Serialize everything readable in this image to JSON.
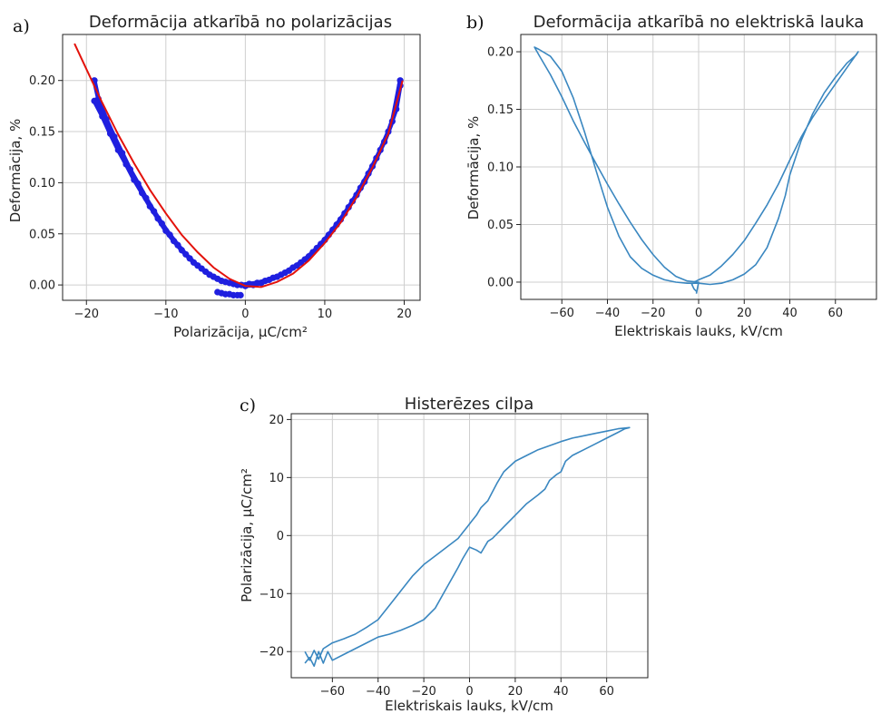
{
  "chart_data": [
    {
      "type": "scatter",
      "panel_label": "a)",
      "title": "Deformācija atkarībā no polarizācijas",
      "xlabel": "Polarizācija, μC/cm²",
      "ylabel": "Deformācija, %",
      "xlim": [
        -23,
        22
      ],
      "ylim": [
        -0.015,
        0.245
      ],
      "xticks": [
        -20,
        -10,
        0,
        10,
        20
      ],
      "yticks": [
        0.0,
        0.05,
        0.1,
        0.15,
        0.2
      ],
      "ytick_labels": [
        "0.00",
        "0.05",
        "0.10",
        "0.15",
        "0.20"
      ],
      "grid": true,
      "colors": {
        "data": "#1f1fdf",
        "fit": "#e3120b"
      },
      "series": [
        {
          "kind": "scatter",
          "x": [
            -19.0,
            -18.5,
            -17.5,
            -16.5,
            -15.5,
            -14.5,
            -13.5,
            -12.5,
            -11.5,
            -10.5,
            -9.5,
            -8.5,
            -7.5,
            -6.5,
            -5.5,
            -4.5,
            -3.5,
            -2.5,
            -1.5,
            -0.5,
            0.5,
            1.5,
            2.5,
            3.5,
            4.5,
            5.5,
            6.5,
            7.5,
            8.5,
            9.5,
            10.5,
            11.5,
            12.5,
            13.5,
            14.5,
            15.5,
            16.5,
            17.5,
            18.5,
            19.5,
            -19.0,
            -18.0,
            -17.0,
            -16.0,
            -15.0,
            -14.0,
            -13.0,
            -12.0,
            -11.0,
            -10.0,
            -9.0,
            -8.0,
            -7.0,
            -6.0,
            -5.0,
            -4.0,
            -3.0,
            -2.0,
            -1.0,
            0.0,
            1.0,
            2.0,
            3.0,
            4.0,
            5.0,
            6.0,
            7.0,
            8.0,
            9.0,
            10.0,
            11.0,
            12.0,
            13.0,
            14.0,
            15.0,
            16.0,
            17.0,
            18.0,
            19.0,
            19.5,
            -3.5,
            -3.0,
            -2.5,
            -2.0,
            -1.5,
            -1.0,
            -0.6
          ],
          "y": [
            0.2,
            0.182,
            0.162,
            0.145,
            0.129,
            0.113,
            0.099,
            0.085,
            0.072,
            0.06,
            0.049,
            0.039,
            0.03,
            0.022,
            0.016,
            0.01,
            0.006,
            0.003,
            0.001,
            0.0,
            0.001,
            0.002,
            0.004,
            0.007,
            0.01,
            0.014,
            0.019,
            0.025,
            0.032,
            0.04,
            0.049,
            0.059,
            0.07,
            0.082,
            0.095,
            0.109,
            0.124,
            0.14,
            0.16,
            0.2,
            0.18,
            0.165,
            0.148,
            0.132,
            0.118,
            0.103,
            0.09,
            0.077,
            0.065,
            0.053,
            0.043,
            0.034,
            0.026,
            0.019,
            0.013,
            0.008,
            0.004,
            0.002,
            0.0,
            -0.001,
            0.0,
            0.002,
            0.005,
            0.008,
            0.012,
            0.017,
            0.022,
            0.028,
            0.036,
            0.044,
            0.054,
            0.064,
            0.076,
            0.088,
            0.101,
            0.116,
            0.132,
            0.15,
            0.172,
            0.195,
            -0.007,
            -0.008,
            -0.009,
            -0.009,
            -0.01,
            -0.01,
            -0.01
          ]
        },
        {
          "kind": "line",
          "x": [
            -21.5,
            -20,
            -18,
            -16,
            -14,
            -12,
            -10,
            -8,
            -6,
            -4,
            -2,
            0,
            2,
            4,
            6,
            8,
            10,
            12,
            14,
            16,
            18,
            19.8
          ],
          "y": [
            0.236,
            0.211,
            0.178,
            0.147,
            0.119,
            0.093,
            0.07,
            0.049,
            0.032,
            0.017,
            0.006,
            -0.001,
            -0.002,
            0.003,
            0.011,
            0.024,
            0.041,
            0.061,
            0.086,
            0.115,
            0.148,
            0.2
          ]
        }
      ]
    },
    {
      "type": "line",
      "panel_label": "b)",
      "title": "Deformācija atkarībā no elektriskā lauka",
      "xlabel": "Elektriskais lauks, kV/cm",
      "ylabel": "Deformācija, %",
      "xlim": [
        -78,
        78
      ],
      "ylim": [
        -0.015,
        0.215
      ],
      "xticks": [
        -60,
        -40,
        -20,
        0,
        20,
        40,
        60
      ],
      "yticks": [
        0.0,
        0.05,
        0.1,
        0.15,
        0.2
      ],
      "ytick_labels": [
        "0.00",
        "0.05",
        "0.10",
        "0.15",
        "0.20"
      ],
      "grid": true,
      "colors": {
        "line": "#3a87c0"
      },
      "series": [
        {
          "x": [
            -1,
            -2,
            -3,
            -2,
            0,
            5,
            10,
            15,
            20,
            25,
            30,
            35,
            40,
            45,
            50,
            55,
            60,
            65,
            70,
            69,
            65,
            60,
            55,
            50,
            45,
            40,
            38,
            35,
            30,
            25,
            20,
            15,
            10,
            5,
            0,
            -5,
            -10,
            -15,
            -20,
            -25,
            -30,
            -35,
            -40,
            -45,
            -50,
            -55,
            -60,
            -65,
            -70,
            -72,
            -70,
            -65,
            -60,
            -55,
            -50,
            -45,
            -40,
            -35,
            -30,
            -25,
            -20,
            -15,
            -10,
            -5,
            0,
            -1
          ],
          "y": [
            -0.008,
            -0.006,
            -0.002,
            0.0,
            0.002,
            0.006,
            0.014,
            0.024,
            0.036,
            0.051,
            0.067,
            0.085,
            0.106,
            0.126,
            0.143,
            0.158,
            0.172,
            0.186,
            0.2,
            0.197,
            0.19,
            0.178,
            0.164,
            0.146,
            0.123,
            0.093,
            0.075,
            0.055,
            0.03,
            0.015,
            0.007,
            0.002,
            -0.001,
            -0.002,
            -0.001,
            -0.001,
            0.0,
            0.002,
            0.006,
            0.012,
            0.022,
            0.04,
            0.065,
            0.097,
            0.13,
            0.16,
            0.183,
            0.196,
            0.202,
            0.204,
            0.197,
            0.18,
            0.161,
            0.14,
            0.121,
            0.103,
            0.085,
            0.068,
            0.052,
            0.037,
            0.024,
            0.013,
            0.005,
            0.001,
            0.0,
            -0.01
          ]
        }
      ]
    },
    {
      "type": "line",
      "panel_label": "c)",
      "title": "Histerēzes cilpa",
      "xlabel": "Elektriskais lauks, kV/cm",
      "ylabel": "Polarizācija, μC/cm²",
      "xlim": [
        -78,
        78
      ],
      "ylim": [
        -24.5,
        21
      ],
      "xticks": [
        -60,
        -40,
        -20,
        0,
        20,
        40,
        60
      ],
      "yticks": [
        -20,
        -10,
        0,
        10,
        20
      ],
      "ytick_labels": [
        "−20",
        "−10",
        "0",
        "10",
        "20"
      ],
      "grid": true,
      "colors": {
        "line": "#3a87c0"
      },
      "series": [
        {
          "x": [
            -72,
            -70,
            -68,
            -66,
            -64,
            -62,
            -60,
            -55,
            -50,
            -45,
            -40,
            -35,
            -30,
            -25,
            -20,
            -15,
            -10,
            -5,
            -3,
            -1,
            0,
            1,
            3,
            5,
            8,
            10,
            12,
            15,
            20,
            25,
            30,
            35,
            40,
            45,
            50,
            55,
            60,
            65,
            70,
            68,
            65,
            60,
            55,
            50,
            45,
            42,
            40,
            38,
            35,
            33,
            30,
            25,
            20,
            15,
            10,
            8,
            5,
            3,
            0,
            -3,
            -5,
            -10,
            -15,
            -20,
            -25,
            -30,
            -35,
            -40,
            -45,
            -50,
            -55,
            -60,
            -62,
            -64,
            -66,
            -68,
            -70,
            -72
          ],
          "y": [
            -20.0,
            -21.5,
            -19.8,
            -21.3,
            -19.5,
            -19.0,
            -18.5,
            -17.8,
            -17.0,
            -15.8,
            -14.5,
            -12.0,
            -9.5,
            -7.0,
            -5.0,
            -3.5,
            -2.0,
            -0.5,
            0.5,
            1.5,
            2.0,
            2.5,
            3.5,
            4.8,
            6.0,
            7.5,
            9.0,
            11.0,
            12.8,
            13.8,
            14.8,
            15.5,
            16.2,
            16.8,
            17.2,
            17.6,
            18.0,
            18.4,
            18.6,
            18.4,
            17.8,
            16.8,
            15.8,
            14.8,
            13.8,
            12.8,
            11.0,
            10.5,
            9.5,
            8.0,
            7.0,
            5.5,
            3.5,
            1.5,
            -0.5,
            -1.0,
            -3.0,
            -2.5,
            -2.0,
            -4.0,
            -5.5,
            -9.0,
            -12.5,
            -14.5,
            -15.5,
            -16.3,
            -17.0,
            -17.5,
            -18.5,
            -19.5,
            -20.5,
            -21.5,
            -20.0,
            -22.0,
            -20.0,
            -22.5,
            -21.0,
            -22.0
          ]
        }
      ]
    }
  ]
}
